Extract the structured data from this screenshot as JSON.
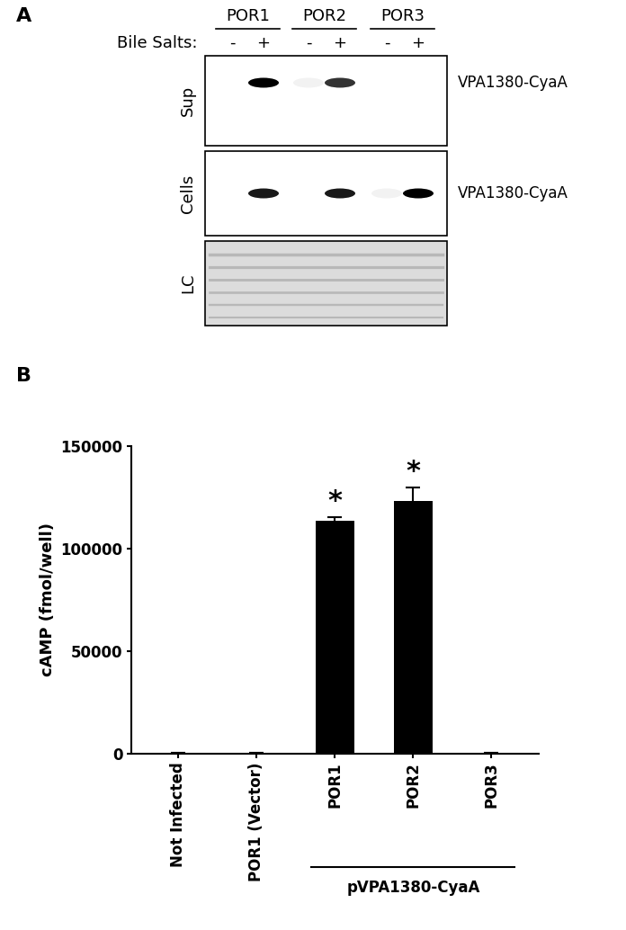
{
  "panel_labels": [
    "A",
    "B"
  ],
  "blot": {
    "groups": [
      "POR1",
      "POR2",
      "POR3"
    ],
    "treatment_label": "Bile Salts:",
    "lanes": [
      "-",
      "+",
      "-",
      "+",
      "-",
      "+"
    ],
    "rows": [
      {
        "name": "Sup",
        "label": "VPA1380-CyaA",
        "band_intensity": [
          0,
          1,
          0.05,
          0.8,
          0,
          0
        ]
      },
      {
        "name": "Cells",
        "label": "VPA1380-CyaA",
        "band_intensity": [
          0,
          0.9,
          0,
          0.9,
          0.05,
          1
        ]
      },
      {
        "name": "LC"
      }
    ]
  },
  "chart_data": {
    "type": "bar",
    "y_label": "cAMP (fmol/well)",
    "categories": [
      "Not Infected",
      "POR1 (Vector)",
      "POR1",
      "POR2",
      "POR3"
    ],
    "values": [
      150,
      200,
      113500,
      123500,
      250
    ],
    "errors": [
      0,
      0,
      2000,
      6500,
      0
    ],
    "significance": [
      null,
      null,
      "*",
      "*",
      null
    ],
    "group": {
      "label": "pVPA1380-CyaA",
      "categories": [
        "POR1",
        "POR2",
        "POR3"
      ]
    },
    "color": "#000000",
    "ylim": [
      0,
      150000
    ],
    "yticks": [
      0,
      50000,
      100000,
      150000
    ],
    "grid": false
  }
}
